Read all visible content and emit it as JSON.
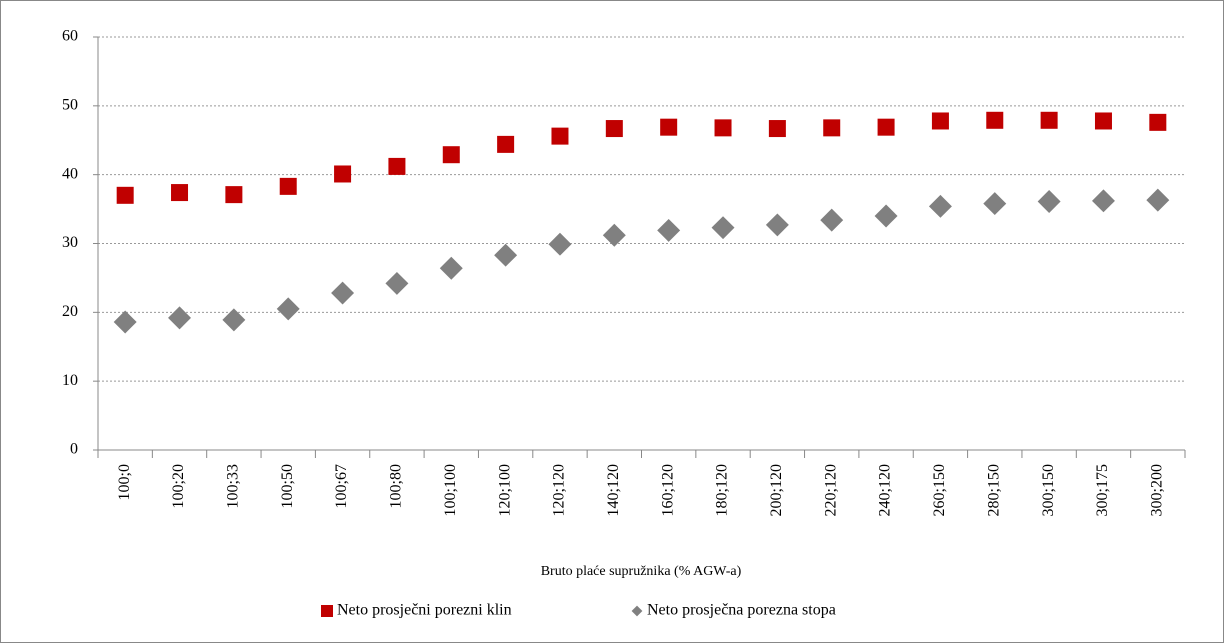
{
  "chart_data": {
    "type": "scatter",
    "x_label": "Bruto plaće supružnika (% AGW-a)",
    "categories": [
      "100;0",
      "100;20",
      "100;33",
      "100;50",
      "100;67",
      "100;80",
      "100;100",
      "120;100",
      "120;120",
      "140;120",
      "160;120",
      "180;120",
      "200;120",
      "220;120",
      "240;120",
      "260;150",
      "280;150",
      "300;150",
      "300;175",
      "300;200"
    ],
    "series": [
      {
        "name": "Neto prosječni porezni klin",
        "color": "#c00000",
        "marker": "square",
        "values": [
          37.0,
          37.4,
          37.1,
          38.3,
          40.1,
          41.2,
          42.9,
          44.4,
          45.6,
          46.7,
          46.9,
          46.8,
          46.7,
          46.8,
          46.9,
          47.8,
          47.9,
          47.9,
          47.8,
          47.6
        ]
      },
      {
        "name": "Neto prosječna porezna stopa",
        "color": "#808080",
        "marker": "diamond",
        "values": [
          18.6,
          19.2,
          18.9,
          20.5,
          22.8,
          24.2,
          26.4,
          28.3,
          29.9,
          31.2,
          31.9,
          32.3,
          32.7,
          33.4,
          34.0,
          35.4,
          35.8,
          36.1,
          36.2,
          36.3
        ]
      }
    ],
    "ylim": [
      0,
      60
    ],
    "yticks": [
      0,
      10,
      20,
      30,
      40,
      50,
      60
    ],
    "grid": true
  }
}
